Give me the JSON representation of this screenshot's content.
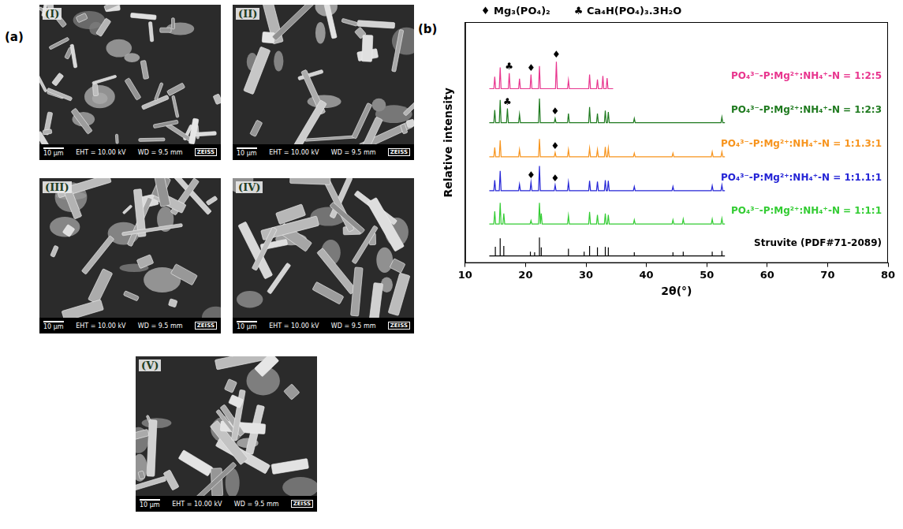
{
  "panel_a": {
    "label": "(a)",
    "images": [
      {
        "label": "(I)",
        "scale_bar": "10 µm",
        "eht": "EHT = 10.00 kV",
        "wd": "WD = 9.5 mm",
        "brand": "ZEISS"
      },
      {
        "label": "(II)",
        "scale_bar": "10 µm",
        "eht": "EHT = 10.00 kV",
        "wd": "WD = 9.5 mm",
        "brand": "ZEISS"
      },
      {
        "label": "(III)",
        "scale_bar": "10 µm",
        "eht": "EHT = 10.00 kV",
        "wd": "WD = 9.5 mm",
        "brand": "ZEISS"
      },
      {
        "label": "(IV)",
        "scale_bar": "10 µm",
        "eht": "EHT = 10.00 kV",
        "wd": "WD = 9.5 mm",
        "brand": "ZEISS"
      },
      {
        "label": "(V)",
        "scale_bar": "10 µm",
        "eht": "EHT = 10.00 kV",
        "wd": "WD = 9.5 mm",
        "brand": "ZEISS"
      }
    ]
  },
  "chart_data": {
    "panel": "(b)",
    "type": "line",
    "x_label": "2θ(°)",
    "y_label": "Relative intensity",
    "xlim": [
      10,
      80
    ],
    "xticks": [
      10,
      20,
      30,
      40,
      50,
      60,
      70,
      80
    ],
    "ylim": [
      0,
      34
    ],
    "yticks": [],
    "tick_labels": "x",
    "grid": false,
    "legend": "top",
    "phases": [
      {
        "symbol": "♦",
        "name": "Mg₃(PO₄)₂"
      },
      {
        "symbol": "♣",
        "name": "Ca₄H(PO₄)₃.3H₂O"
      }
    ],
    "series": [
      {
        "name": "PO₄³⁻-P:Mg²⁺:NH₄⁺-N = 1:2:5",
        "color": "#e8358e",
        "x": [
          14,
          14.75,
          14.9,
          15.05,
          15.65,
          15.8,
          15.95,
          17.15,
          17.3,
          17.45,
          18.85,
          19.0,
          19.15,
          20.75,
          20.9,
          21.05,
          22.15,
          22.3,
          22.45,
          24.95,
          25.1,
          25.25,
          26.95,
          27.1,
          27.25,
          30.45,
          30.6,
          30.75,
          31.75,
          31.9,
          32.05,
          32.65,
          32.8,
          32.95,
          33.35,
          33.5,
          33.65,
          34.5
        ],
        "values": [
          24.6,
          24.6,
          26.3,
          24.6,
          24.6,
          27.6,
          24.6,
          24.6,
          26.8,
          24.6,
          24.6,
          26.0,
          24.6,
          24.6,
          26.6,
          24.6,
          24.6,
          27.8,
          24.6,
          24.6,
          28.4,
          24.6,
          24.6,
          25.8,
          24.6,
          24.6,
          26.6,
          24.6,
          24.6,
          25.9,
          24.6,
          24.6,
          26.4,
          24.6,
          24.6,
          26.1,
          24.6,
          24.6
        ],
        "peak_marks": [
          {
            "x": 17.3,
            "symbol": "♣"
          },
          {
            "x": 20.9,
            "symbol": "♦"
          },
          {
            "x": 25.1,
            "symbol": "♦"
          }
        ]
      },
      {
        "name": "PO₄³⁻-P:Mg²⁺:NH₄⁺-N = 1:2:3",
        "color": "#1f7a1f",
        "x": [
          14,
          14.75,
          14.9,
          15.05,
          15.65,
          15.8,
          15.95,
          16.85,
          17.0,
          17.15,
          18.85,
          19.0,
          19.15,
          22.15,
          22.3,
          22.45,
          24.75,
          24.9,
          25.05,
          26.95,
          27.1,
          27.25,
          30.45,
          30.6,
          30.75,
          31.75,
          31.9,
          32.05,
          33.05,
          33.2,
          33.35,
          33.55,
          33.7,
          33.85,
          37.85,
          38.0,
          38.15,
          52.35,
          52.5,
          52.65,
          53
        ],
        "values": [
          19.8,
          19.8,
          21.6,
          19.8,
          19.8,
          23.0,
          19.8,
          19.8,
          21.8,
          19.8,
          19.8,
          21.0,
          19.8,
          19.8,
          23.2,
          19.8,
          19.8,
          20.4,
          19.8,
          19.8,
          21.1,
          19.8,
          19.8,
          22.0,
          19.8,
          19.8,
          21.1,
          19.8,
          19.8,
          21.5,
          19.8,
          19.8,
          21.3,
          19.8,
          19.8,
          20.4,
          19.8,
          19.8,
          20.6,
          19.8,
          19.8
        ],
        "peak_marks": [
          {
            "x": 17.0,
            "symbol": "♣"
          },
          {
            "x": 24.9,
            "symbol": "♦"
          }
        ]
      },
      {
        "name": "PO₄³⁻-P:Mg²⁺:NH₄⁺-N = 1:1.3:1",
        "color": "#f7941d",
        "x": [
          14,
          14.75,
          14.9,
          15.05,
          15.65,
          15.8,
          15.95,
          18.85,
          19.0,
          19.15,
          22.15,
          22.3,
          22.45,
          24.75,
          24.9,
          25.05,
          26.95,
          27.1,
          27.25,
          30.45,
          30.6,
          30.75,
          31.75,
          31.9,
          32.05,
          33.05,
          33.2,
          33.35,
          33.55,
          33.7,
          33.85,
          37.85,
          38.0,
          38.15,
          44.25,
          44.4,
          44.55,
          50.75,
          50.9,
          51.05,
          52.35,
          52.5,
          52.65,
          53
        ],
        "values": [
          15,
          15,
          16.3,
          15,
          15,
          17.3,
          15,
          15,
          16,
          15,
          15,
          17.5,
          15,
          15,
          15.6,
          15,
          15,
          16,
          15,
          15,
          16.2,
          15,
          15,
          16,
          15,
          15,
          16.4,
          15,
          15,
          16.2,
          15,
          15,
          15.5,
          15,
          15,
          15.5,
          15,
          15,
          15.7,
          15,
          15,
          15.7,
          15,
          15
        ],
        "peak_marks": [
          {
            "x": 24.9,
            "symbol": "♦"
          }
        ]
      },
      {
        "name": "PO₄³⁻-P:Mg²⁺:NH₄⁺-N = 1:1.1:1",
        "color": "#2424d6",
        "x": [
          14,
          14.75,
          14.9,
          15.05,
          15.65,
          15.8,
          15.95,
          18.85,
          19.0,
          19.15,
          20.75,
          20.9,
          21.05,
          22.15,
          22.3,
          22.45,
          24.75,
          24.9,
          25.05,
          26.95,
          27.1,
          27.25,
          30.45,
          30.6,
          30.75,
          31.75,
          31.9,
          32.05,
          33.05,
          33.2,
          33.35,
          33.55,
          33.7,
          33.85,
          37.85,
          38.0,
          38.15,
          44.25,
          44.4,
          44.55,
          50.75,
          50.9,
          51.05,
          52.35,
          52.5,
          52.65,
          53
        ],
        "values": [
          10.2,
          10.2,
          11.7,
          10.2,
          10.2,
          13.0,
          10.2,
          10.2,
          11.1,
          10.2,
          10.2,
          11.4,
          10.2,
          10.2,
          13.7,
          10.2,
          10.2,
          11.0,
          10.2,
          10.2,
          11.4,
          10.2,
          10.2,
          11.6,
          10.2,
          10.2,
          11.5,
          10.2,
          10.2,
          11.7,
          10.2,
          10.2,
          11.6,
          10.2,
          10.2,
          10.8,
          10.2,
          10.2,
          10.8,
          10.2,
          10.2,
          10.9,
          10.2,
          10.2,
          11.0,
          10.2,
          10.2
        ],
        "peak_marks": [
          {
            "x": 20.9,
            "symbol": "♦"
          },
          {
            "x": 24.9,
            "symbol": "♦"
          }
        ]
      },
      {
        "name": "PO₄³⁻-P:Mg²⁺:NH₄⁺-N = 1:1:1",
        "color": "#33cc33",
        "x": [
          14,
          14.75,
          14.9,
          15.05,
          15.65,
          15.8,
          15.95,
          16.25,
          16.4,
          16.55,
          20.75,
          20.9,
          21.05,
          22.15,
          22.3,
          22.45,
          22.45,
          22.6,
          22.75,
          26.95,
          27.1,
          27.25,
          30.45,
          30.6,
          30.75,
          31.75,
          31.9,
          32.05,
          33.05,
          33.2,
          33.35,
          33.55,
          33.7,
          33.85,
          37.85,
          38.0,
          38.15,
          44.25,
          44.4,
          44.55,
          45.95,
          46.1,
          46.25,
          50.75,
          50.9,
          51.05,
          52.35,
          52.5,
          52.65,
          53
        ],
        "values": [
          5.5,
          5.5,
          7.3,
          5.5,
          5.5,
          8.5,
          5.5,
          5.5,
          7.0,
          5.5,
          5.5,
          6.0,
          5.5,
          5.5,
          8.5,
          5.5,
          5.5,
          7.0,
          5.5,
          5.5,
          6.7,
          5.5,
          5.5,
          7.2,
          5.5,
          5.5,
          6.8,
          5.5,
          5.5,
          7.0,
          5.5,
          5.5,
          6.8,
          5.5,
          5.5,
          6.1,
          5.5,
          5.5,
          6.1,
          5.5,
          5.5,
          6.2,
          5.5,
          5.5,
          6.2,
          5.5,
          5.5,
          6.3,
          5.5,
          5.5
        ]
      },
      {
        "name": "Struvite (PDF#71-2089)",
        "color": "#000000",
        "x": [
          14,
          15.0,
          15.0,
          15.0,
          15.8,
          15.8,
          15.8,
          16.4,
          16.4,
          16.4,
          20.8,
          20.8,
          20.8,
          21.5,
          21.5,
          21.5,
          22.3,
          22.3,
          22.3,
          22.6,
          22.6,
          22.6,
          27.1,
          27.1,
          27.1,
          29.7,
          29.7,
          29.7,
          30.6,
          30.6,
          30.6,
          31.9,
          31.9,
          31.9,
          33.2,
          33.2,
          33.2,
          33.7,
          33.7,
          33.7,
          38.0,
          38.0,
          38.0,
          44.4,
          44.4,
          44.4,
          46.1,
          46.1,
          46.1,
          50.9,
          50.9,
          50.9,
          52.5,
          52.5,
          52.5,
          53
        ],
        "values": [
          1,
          1,
          2.3,
          1,
          1,
          3.5,
          1,
          1,
          2.4,
          1,
          1,
          1.6,
          1,
          1,
          1.5,
          1,
          1,
          3.6,
          1,
          1,
          2.2,
          1,
          1,
          2.0,
          1,
          1,
          1.6,
          1,
          1,
          2.4,
          1,
          1,
          2.2,
          1,
          1,
          2.3,
          1,
          1,
          2.2,
          1,
          1,
          1.5,
          1,
          1,
          1.5,
          1,
          1,
          1.6,
          1,
          1,
          1.6,
          1,
          1,
          1.7,
          1,
          1
        ]
      }
    ]
  }
}
